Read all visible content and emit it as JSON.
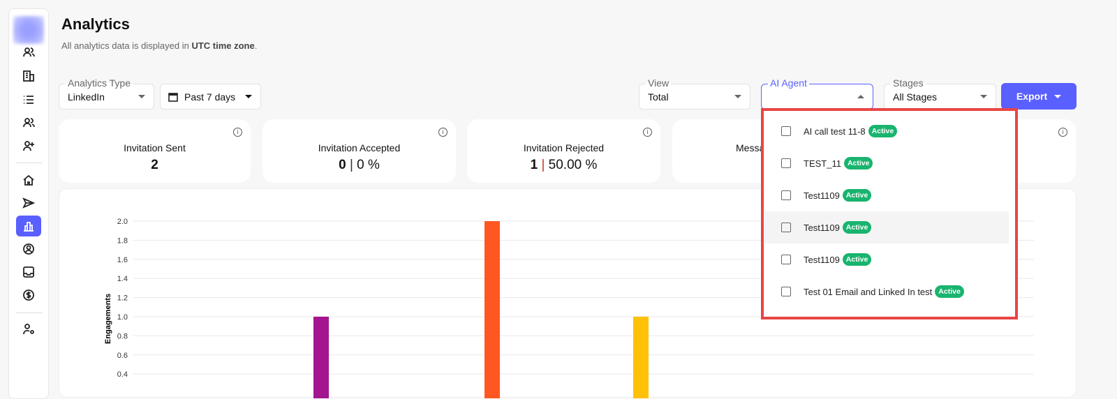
{
  "page": {
    "title": "Analytics",
    "subtitle_prefix": "All analytics data is displayed in ",
    "subtitle_bold": "UTC time zone",
    "subtitle_suffix": "."
  },
  "sidebar": {
    "items": [
      "contacts-icon",
      "company-icon",
      "list-icon",
      "team-icon",
      "add-user-icon",
      "home-icon",
      "send-icon",
      "analytics-icon",
      "profile-icon",
      "inbox-icon",
      "billing-icon",
      "user-settings-icon"
    ],
    "active": "analytics-icon"
  },
  "filters": {
    "analytics_type": {
      "label": "Analytics Type",
      "value": "LinkedIn"
    },
    "date_range": {
      "value": "Past 7 days"
    },
    "view": {
      "label": "View",
      "value": "Total"
    },
    "ai_agent": {
      "label": "AI Agent",
      "value": ""
    },
    "stages": {
      "label": "Stages",
      "value": "All Stages"
    },
    "export_label": "Export"
  },
  "cards": [
    {
      "title": "Invitation Sent",
      "value": "2"
    },
    {
      "title": "Invitation Accepted",
      "value": "0",
      "percent": "0 %"
    },
    {
      "title": "Invitation Rejected",
      "value": "1",
      "percent": "50.00 %"
    },
    {
      "title": "Messages Sent"
    },
    {}
  ],
  "ai_agent_options": [
    {
      "label": "AI call test 11-8",
      "status": "Active"
    },
    {
      "label": "TEST_11",
      "status": "Active"
    },
    {
      "label": "Test1109",
      "status": "Active"
    },
    {
      "label": "Test1109",
      "status": "Active"
    },
    {
      "label": "Test1109",
      "status": "Active"
    },
    {
      "label": "Test 01 Email and Linked In test",
      "status": "Active"
    }
  ],
  "colors": {
    "accent": "#5a5fff",
    "active_badge": "#19b46e",
    "highlight_border": "#e84545"
  },
  "chart_data": {
    "type": "bar",
    "ylabel": "Engagements",
    "yticks": [
      "0.4",
      "0.6",
      "0.8",
      "1.0",
      "1.2",
      "1.4",
      "1.6",
      "1.8",
      "2.0"
    ],
    "ylim": [
      0,
      2.0
    ],
    "grid": true,
    "series": [
      {
        "values": [
          1
        ],
        "color": "#a3168f"
      },
      {
        "values": [
          2
        ],
        "color": "#ff5722"
      },
      {
        "values": [
          1
        ],
        "color": "#ffc107"
      }
    ]
  }
}
